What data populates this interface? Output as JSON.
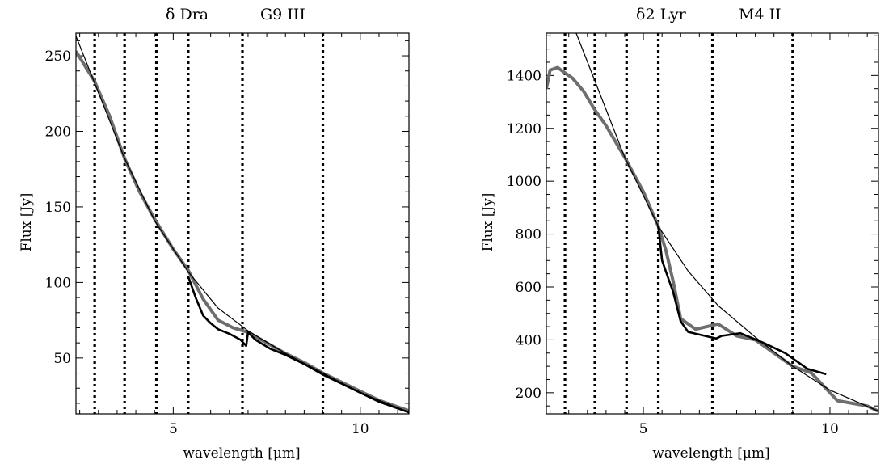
{
  "chart_data": [
    {
      "type": "line",
      "title_star": "δ Dra",
      "title_spectral": "G9 III",
      "xlabel": "wavelength [μm]",
      "ylabel": "Flux [Jy]",
      "xlim": [
        2.4,
        11.3
      ],
      "ylim": [
        13,
        265
      ],
      "xticks": [
        5,
        10
      ],
      "yticks": [
        50,
        100,
        150,
        200,
        250
      ],
      "x_minor_step": 0.5,
      "y_minor_step": 10,
      "dotted_lines_x": [
        2.9,
        3.7,
        4.55,
        5.4,
        6.85,
        9.0
      ],
      "model_curve": {
        "x": [
          2.4,
          2.9,
          3.7,
          4.5,
          5.4,
          6.2,
          7.0,
          8.0,
          9.0,
          10.0,
          11.3
        ],
        "y": [
          263,
          232,
          182,
          141,
          107,
          83,
          68,
          53,
          40,
          27,
          14
        ]
      },
      "series": [
        {
          "x": [
            2.4,
            2.6,
            2.9,
            3.3,
            3.7,
            4.1,
            4.5,
            5.0,
            5.4,
            5.8,
            6.2,
            6.6,
            7.0,
            7.5,
            8.0,
            8.5,
            9.0,
            9.5,
            10.0,
            10.5,
            11.3
          ],
          "y": [
            253,
            245,
            233,
            210,
            182,
            160,
            142,
            122,
            108,
            89,
            75,
            70,
            67,
            60,
            53,
            47,
            40,
            34,
            28,
            22,
            15
          ],
          "color": "#6e6e6e"
        },
        {
          "x": [
            5.4,
            5.6,
            5.8,
            6.0,
            6.2,
            6.5,
            6.8,
            6.95,
            7.0,
            7.2,
            7.6,
            8.0,
            8.5,
            9.0,
            9.5,
            10.0,
            10.5,
            11.3
          ],
          "y": [
            104,
            90,
            78,
            73,
            69,
            66,
            62,
            58,
            67,
            62,
            56,
            52,
            46,
            39,
            33,
            27,
            21,
            14
          ],
          "color": "#000000"
        }
      ]
    },
    {
      "type": "line",
      "title_star": "δ2 Lyr",
      "title_spectral": "M4 II",
      "xlabel": "wavelength [μm]",
      "ylabel": "Flux [Jy]",
      "xlim": [
        2.4,
        11.3
      ],
      "ylim": [
        120,
        1560
      ],
      "xticks": [
        5,
        10
      ],
      "yticks": [
        200,
        400,
        600,
        800,
        1000,
        1200,
        1400
      ],
      "x_minor_step": 0.5,
      "y_minor_step": 50,
      "dotted_lines_x": [
        2.9,
        3.7,
        4.55,
        5.4,
        6.85,
        9.0
      ],
      "model_curve": {
        "x": [
          3.2,
          3.7,
          4.5,
          5.4,
          6.2,
          7.0,
          8.0,
          9.0,
          10.0,
          11.3
        ],
        "y": [
          1560,
          1380,
          1090,
          830,
          660,
          530,
          410,
          300,
          210,
          130
        ]
      },
      "series": [
        {
          "x": [
            2.4,
            2.5,
            2.7,
            2.9,
            3.1,
            3.4,
            3.7,
            4.0,
            4.5,
            5.0,
            5.4,
            5.6,
            5.8,
            6.0,
            6.4,
            7.0,
            7.5,
            8.0,
            8.5,
            9.0,
            9.5,
            9.9,
            10.2,
            11.0,
            11.3
          ],
          "y": [
            1350,
            1420,
            1430,
            1410,
            1390,
            1340,
            1270,
            1210,
            1090,
            960,
            830,
            740,
            620,
            480,
            440,
            460,
            415,
            400,
            350,
            300,
            275,
            215,
            170,
            150,
            130
          ],
          "color": "#6e6e6e"
        },
        {
          "x": [
            5.4,
            5.5,
            5.6,
            5.7,
            5.8,
            6.0,
            6.2,
            6.5,
            6.8,
            6.95,
            7.1,
            7.6,
            8.2,
            8.8,
            9.0,
            9.4,
            9.9
          ],
          "y": [
            830,
            700,
            660,
            620,
            580,
            470,
            430,
            420,
            410,
            405,
            415,
            425,
            390,
            350,
            330,
            290,
            270
          ],
          "color": "#000000"
        }
      ]
    }
  ]
}
